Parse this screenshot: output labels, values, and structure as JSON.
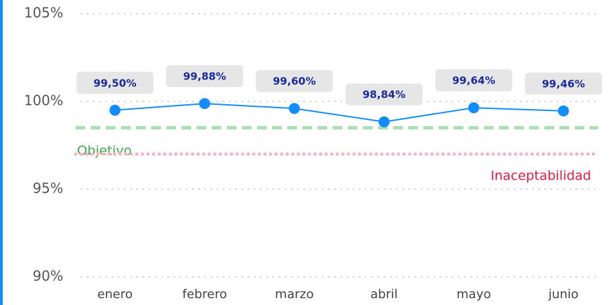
{
  "chart_data": {
    "type": "line",
    "categories": [
      "enero",
      "febrero",
      "marzo",
      "abril",
      "mayo",
      "junio"
    ],
    "series": [
      {
        "color": "#118dff",
        "values": [
          99.5,
          99.88,
          99.6,
          98.84,
          99.64,
          99.46
        ],
        "value_labels": [
          "99,50%",
          "99,88%",
          "99,60%",
          "98,84%",
          "99,64%",
          "99,46%"
        ]
      }
    ],
    "ylim": [
      90,
      105
    ],
    "yticks": [
      {
        "value": 90,
        "label": "90%"
      },
      {
        "value": 95,
        "label": "95%"
      },
      {
        "value": 100,
        "label": "100%"
      },
      {
        "value": 105,
        "label": "105%"
      }
    ],
    "grid": true,
    "reference_lines": [
      {
        "name": "Objetivo",
        "value": 98.5,
        "color": "#a9dfb3",
        "label_color": "#3aaa4a",
        "style": "dashed"
      },
      {
        "name": "Inaceptabilidad",
        "value": 97,
        "color": "#f7b6c3",
        "label_color": "#e8173c",
        "style": "dotted"
      }
    ]
  }
}
